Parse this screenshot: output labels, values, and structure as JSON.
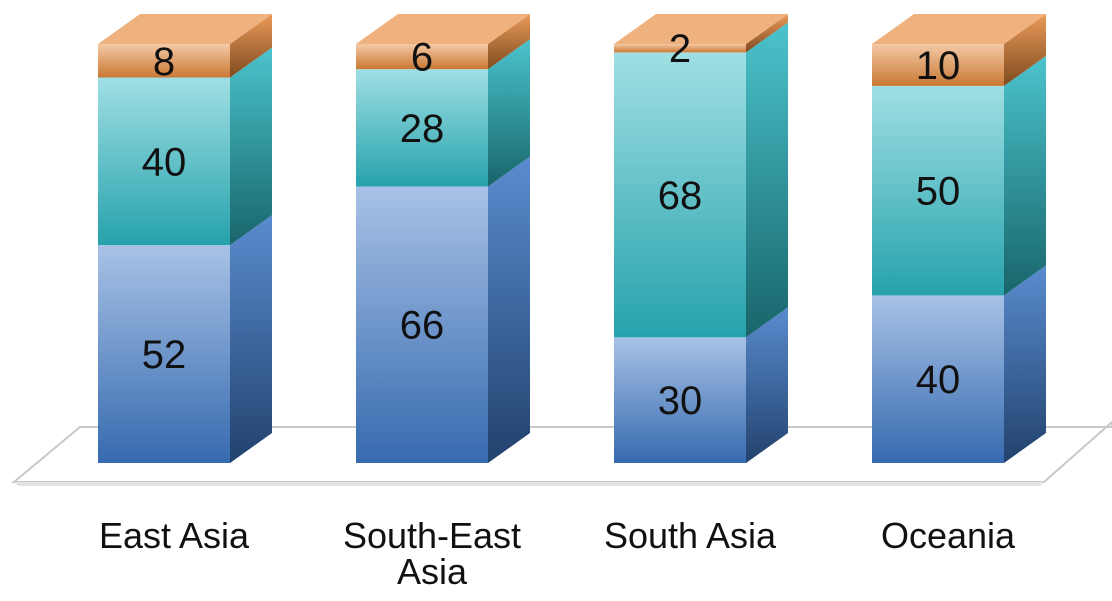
{
  "chart_data": {
    "type": "bar",
    "stacked": true,
    "percent": true,
    "three_d": true,
    "categories": [
      "East Asia",
      "South-East Asia",
      "South Asia",
      "Oceania"
    ],
    "category_lines": [
      [
        "East Asia"
      ],
      [
        "South-East",
        "Asia"
      ],
      [
        "South Asia"
      ],
      [
        "Oceania"
      ]
    ],
    "series": [
      {
        "values": [
          52,
          66,
          30,
          40
        ],
        "color": "#3d78c7"
      },
      {
        "values": [
          40,
          28,
          68,
          50
        ],
        "color": "#2bb8c3"
      },
      {
        "values": [
          8,
          6,
          2,
          10
        ],
        "color": "#e6883a"
      }
    ],
    "ylim": [
      0,
      100
    ],
    "legend": "none",
    "grid": false
  }
}
